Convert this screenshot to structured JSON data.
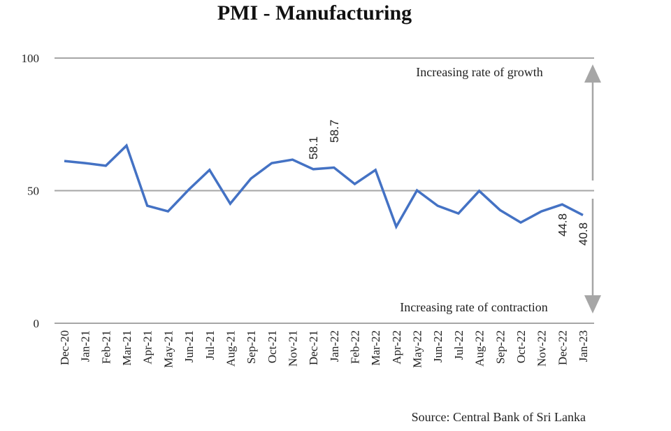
{
  "chart_data": {
    "type": "line",
    "title": "PMI - Manufacturing",
    "xlabel": "",
    "ylabel": "",
    "ylim": [
      0,
      100
    ],
    "yticks": [
      0,
      50,
      100
    ],
    "grid": true,
    "categories": [
      "Dec-20",
      "Jan-21",
      "Feb-21",
      "Mar-21",
      "Apr-21",
      "May-21",
      "Jun-21",
      "Jul-21",
      "Aug-21",
      "Sep-21",
      "Oct-21",
      "Nov-21",
      "Dec-21",
      "Jan-22",
      "Feb-22",
      "Mar-22",
      "Apr-22",
      "May-22",
      "Jun-22",
      "Jul-22",
      "Aug-22",
      "Sep-22",
      "Oct-22",
      "Nov-22",
      "Dec-22",
      "Jan-23"
    ],
    "series": [
      {
        "name": "PMI - Manufacturing",
        "color": "#4472c4",
        "values": [
          61.2,
          60.4,
          59.4,
          67.0,
          44.3,
          42.2,
          50.4,
          57.8,
          45.1,
          54.6,
          60.4,
          61.7,
          58.1,
          58.7,
          52.5,
          57.8,
          36.4,
          50.1,
          44.3,
          41.4,
          49.9,
          42.7,
          38.0,
          42.2,
          44.8,
          40.8
        ]
      }
    ],
    "data_labels": [
      {
        "category": "Dec-21",
        "text": "58.1"
      },
      {
        "category": "Jan-22",
        "text": "58.7"
      },
      {
        "category": "Dec-22",
        "text": "44.8"
      },
      {
        "category": "Jan-23",
        "text": "40.8"
      }
    ],
    "annotations": {
      "growth": "Increasing rate of growth",
      "contraction": "Increasing rate of contraction"
    },
    "source": "Source: Central Bank of Sri Lanka"
  },
  "colors": {
    "line": "#4472c4",
    "grid": "#a6a6a6",
    "arrow": "#a6a6a6"
  }
}
